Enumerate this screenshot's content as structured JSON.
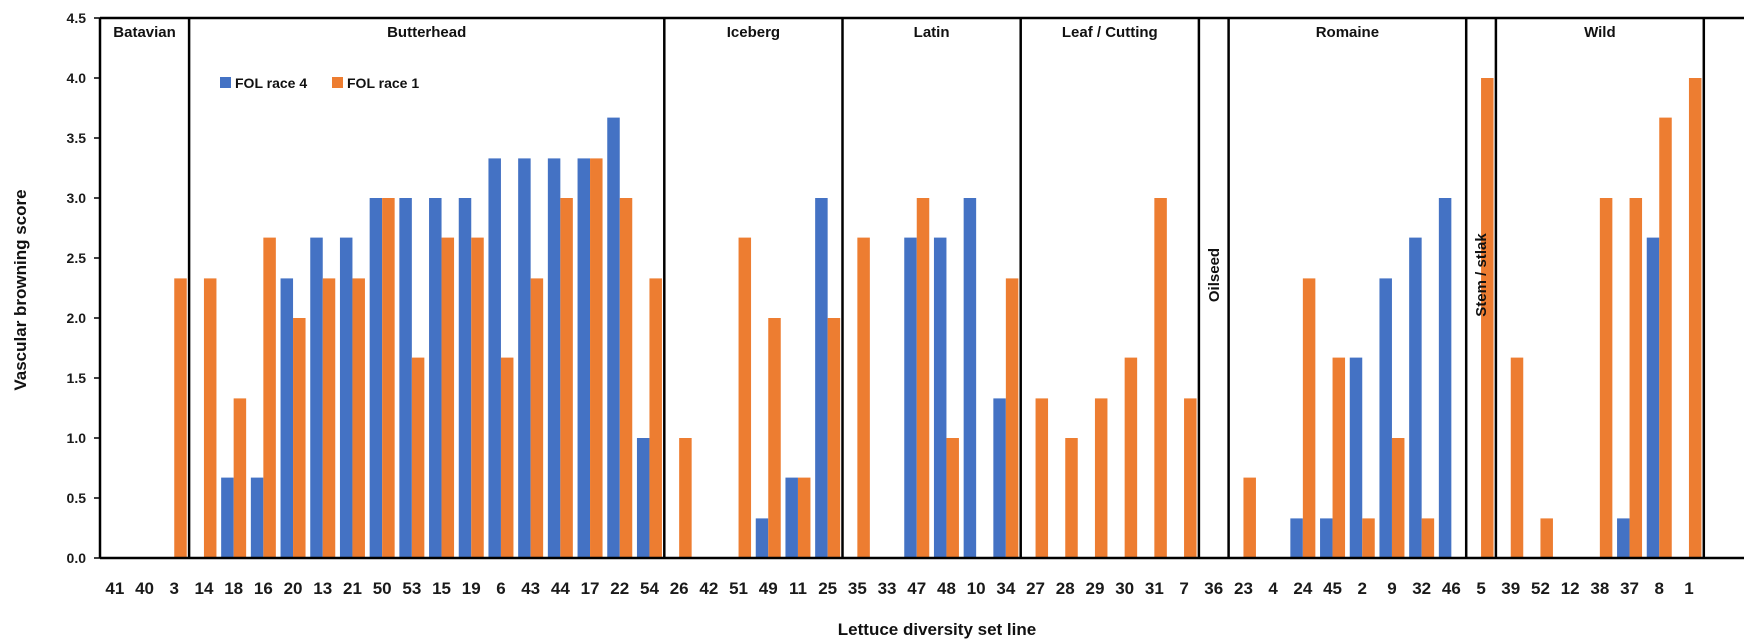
{
  "chart_data": {
    "type": "bar",
    "xlabel": "Lettuce diversity set line",
    "ylabel": "Vascular browning score",
    "ylim": [
      0,
      4.5
    ],
    "yticks": [
      "0.0",
      "0.5",
      "1.0",
      "1.5",
      "2.0",
      "2.5",
      "3.0",
      "3.5",
      "4.0",
      "4.5"
    ],
    "grid": false,
    "legend_position": "top-left",
    "categories": [
      "41",
      "40",
      "3",
      "14",
      "18",
      "16",
      "20",
      "13",
      "21",
      "50",
      "53",
      "15",
      "19",
      "6",
      "43",
      "44",
      "17",
      "22",
      "54",
      "26",
      "42",
      "51",
      "49",
      "11",
      "25",
      "35",
      "33",
      "47",
      "48",
      "10",
      "34",
      "27",
      "28",
      "29",
      "30",
      "31",
      "7",
      "36",
      "23",
      "4",
      "24",
      "45",
      "2",
      "9",
      "32",
      "46",
      "5",
      "39",
      "52",
      "12",
      "38",
      "37",
      "8",
      "1"
    ],
    "series": [
      {
        "name": "FOL race 4",
        "color": "#4472C4",
        "values": [
          0,
          0,
          0,
          0,
          0.67,
          0.67,
          2.33,
          2.67,
          2.67,
          3,
          3,
          3,
          3,
          3.33,
          3.33,
          3.33,
          3.33,
          3.67,
          1,
          0,
          0,
          0,
          0.33,
          0.67,
          3,
          0,
          0,
          2.67,
          2.67,
          3,
          1.33,
          0,
          0,
          0,
          0,
          0,
          0,
          0,
          0,
          0,
          0.33,
          0.33,
          1.67,
          2.33,
          2.67,
          3,
          0,
          0,
          0,
          0,
          0,
          0.33,
          2.67,
          0
        ]
      },
      {
        "name": "FOL race 1",
        "color": "#ED7D31",
        "values": [
          0,
          0,
          2.33,
          2.33,
          1.33,
          2.67,
          2,
          2.33,
          2.33,
          3,
          1.67,
          2.67,
          2.67,
          1.67,
          2.33,
          3,
          3.33,
          3,
          2.33,
          1,
          0,
          2.67,
          2,
          0.67,
          2,
          2.67,
          0,
          3,
          1,
          0,
          2.33,
          1.33,
          1,
          1.33,
          1.67,
          3,
          1.33,
          0,
          0.67,
          0,
          2.33,
          1.67,
          0.33,
          1,
          0.33,
          0,
          4,
          1.67,
          0.33,
          0,
          3,
          3,
          3.67,
          4
        ]
      }
    ],
    "groups": [
      {
        "label": "Batavian",
        "start": 0,
        "end": 2,
        "vertical": false
      },
      {
        "label": "Butterhead",
        "start": 3,
        "end": 18,
        "vertical": false
      },
      {
        "label": "Iceberg",
        "start": 19,
        "end": 24,
        "vertical": false
      },
      {
        "label": "Latin",
        "start": 25,
        "end": 30,
        "vertical": false
      },
      {
        "label": "Leaf / Cutting",
        "start": 31,
        "end": 36,
        "vertical": false
      },
      {
        "label": "Oilseed",
        "start": 37,
        "end": 37,
        "vertical": true
      },
      {
        "label": "Romaine",
        "start": 38,
        "end": 45,
        "vertical": false
      },
      {
        "label": "Stem / stlak",
        "start": 46,
        "end": 46,
        "vertical": true
      },
      {
        "label": "Wild",
        "start": 47,
        "end": 53,
        "vertical": false
      }
    ]
  }
}
